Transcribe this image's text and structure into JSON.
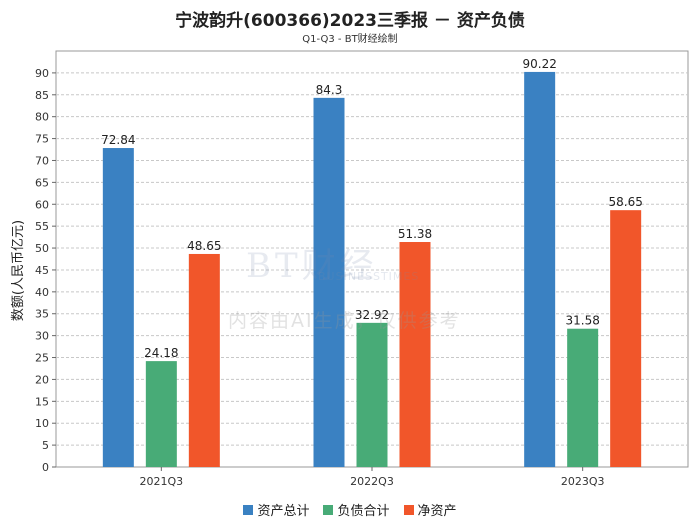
{
  "chart_data": {
    "type": "bar",
    "title": "宁波韵升(600366)2023三季报 － 资产负债",
    "subtitle": "Q1-Q3 - BT财经绘制",
    "ylabel": "数额(人民币亿元)",
    "xlabel": "",
    "categories": [
      "2021Q3",
      "2022Q3",
      "2023Q3"
    ],
    "series": [
      {
        "name": "资产总计",
        "color": "#3a81c2",
        "values": [
          72.84,
          84.3,
          90.22
        ]
      },
      {
        "name": "负债合计",
        "color": "#48ab77",
        "values": [
          24.18,
          32.92,
          31.58
        ]
      },
      {
        "name": "净资产",
        "color": "#f1562a",
        "values": [
          48.65,
          51.38,
          58.65
        ]
      }
    ],
    "ylim": [
      0,
      95
    ],
    "yticks": [
      0,
      5,
      10,
      15,
      20,
      25,
      30,
      35,
      40,
      45,
      50,
      55,
      60,
      65,
      70,
      75,
      80,
      85,
      90
    ],
    "grid": true,
    "legend_position": "bottom"
  },
  "watermark": {
    "logo": "BT财经",
    "sub": "BUSINESSTIMES",
    "text": "内容由AI生成，仅供参考"
  }
}
